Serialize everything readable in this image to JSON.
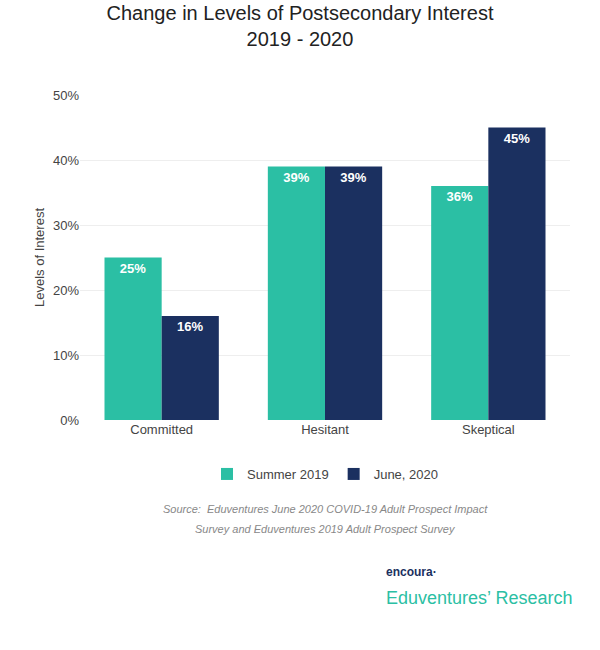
{
  "chart_data": {
    "type": "bar",
    "title": "Change in Levels of Postsecondary Interest\n2019 - 2020",
    "ylabel": "Levels of Interest",
    "categories": [
      "Committed",
      "Hesitant",
      "Skeptical"
    ],
    "series": [
      {
        "name": "Summer 2019",
        "color": "#2bbfa4",
        "values": [
          25,
          39,
          36
        ],
        "value_labels": [
          "25%",
          "39%",
          "36%"
        ]
      },
      {
        "name": "June, 2020",
        "color": "#1b3060",
        "values": [
          16,
          39,
          45
        ],
        "value_labels": [
          "16%",
          "39%",
          "45%"
        ]
      }
    ],
    "ylim": [
      0,
      50
    ],
    "yticks": [
      {
        "value": 0,
        "label": "0%"
      },
      {
        "value": 10,
        "label": "10%"
      },
      {
        "value": 20,
        "label": "20%"
      },
      {
        "value": 30,
        "label": "30%"
      },
      {
        "value": 40,
        "label": "40%"
      },
      {
        "value": 50,
        "label": "50%"
      }
    ],
    "grid": true,
    "legend": "bottom",
    "data_labels": true,
    "annotations": [
      "Source:  Eduventures June 2020 COVID-19 Adult Prospect Impact",
      "Survey and Eduventures 2019 Adult Prospect Survey",
      "encoura·",
      "Eduventures’ Research"
    ]
  }
}
